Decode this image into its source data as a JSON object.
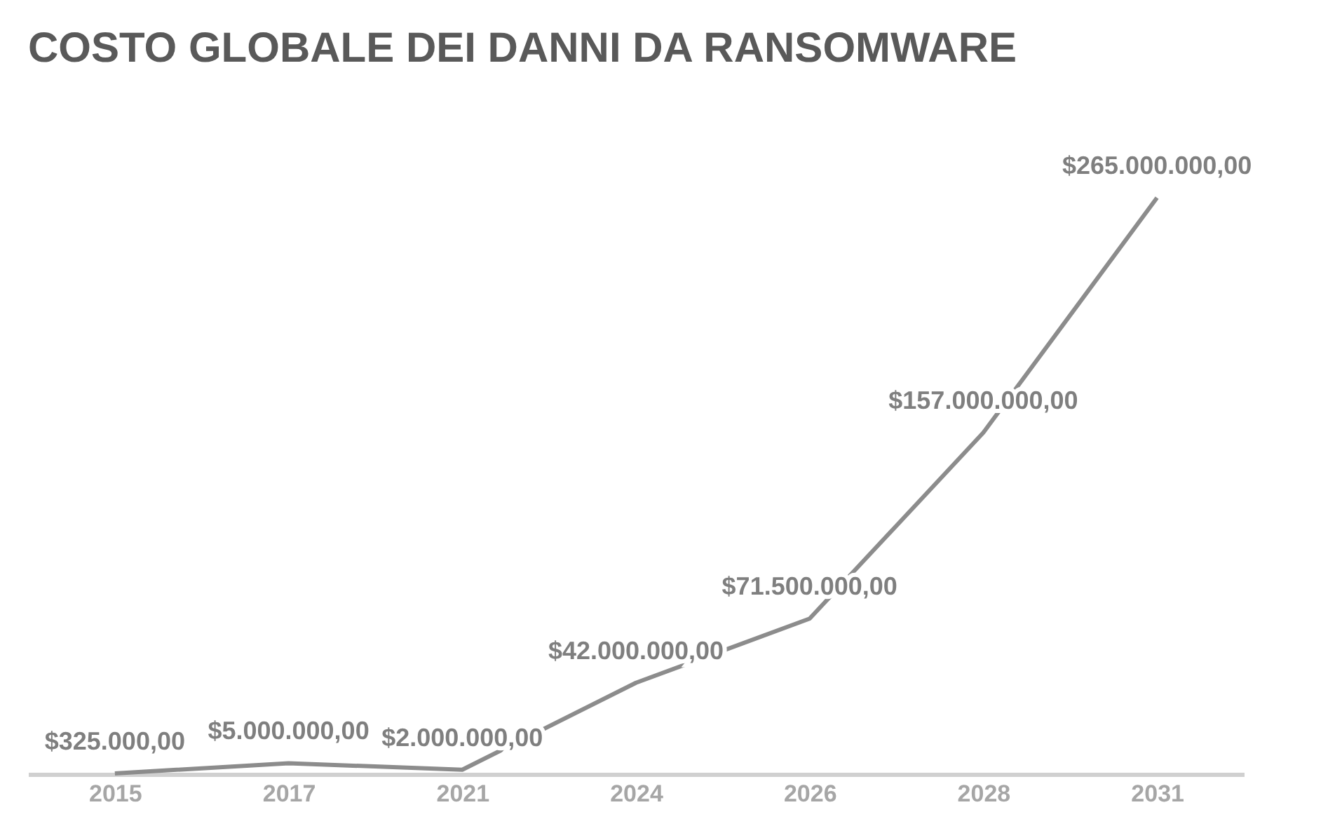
{
  "chart_data": {
    "type": "line",
    "title": "COSTO GLOBALE DEI DANNI DA RANSOMWARE",
    "categories": [
      "2015",
      "2017",
      "2021",
      "2024",
      "2026",
      "2028",
      "2031"
    ],
    "series": [
      {
        "color": "#8c8c8c",
        "values": [
          325000,
          5000000,
          2000000,
          42000000,
          71500000,
          157000000,
          265000000
        ],
        "value_labels": [
          "$325.000,00",
          "$5.000.000,00",
          "$2.000.000,00",
          "$42.000.000,00",
          "$71.500.000,00",
          "$157.000.000,00",
          "$265.000.000,00"
        ]
      }
    ],
    "grid": false,
    "marker": "none",
    "line_style": "solid"
  }
}
